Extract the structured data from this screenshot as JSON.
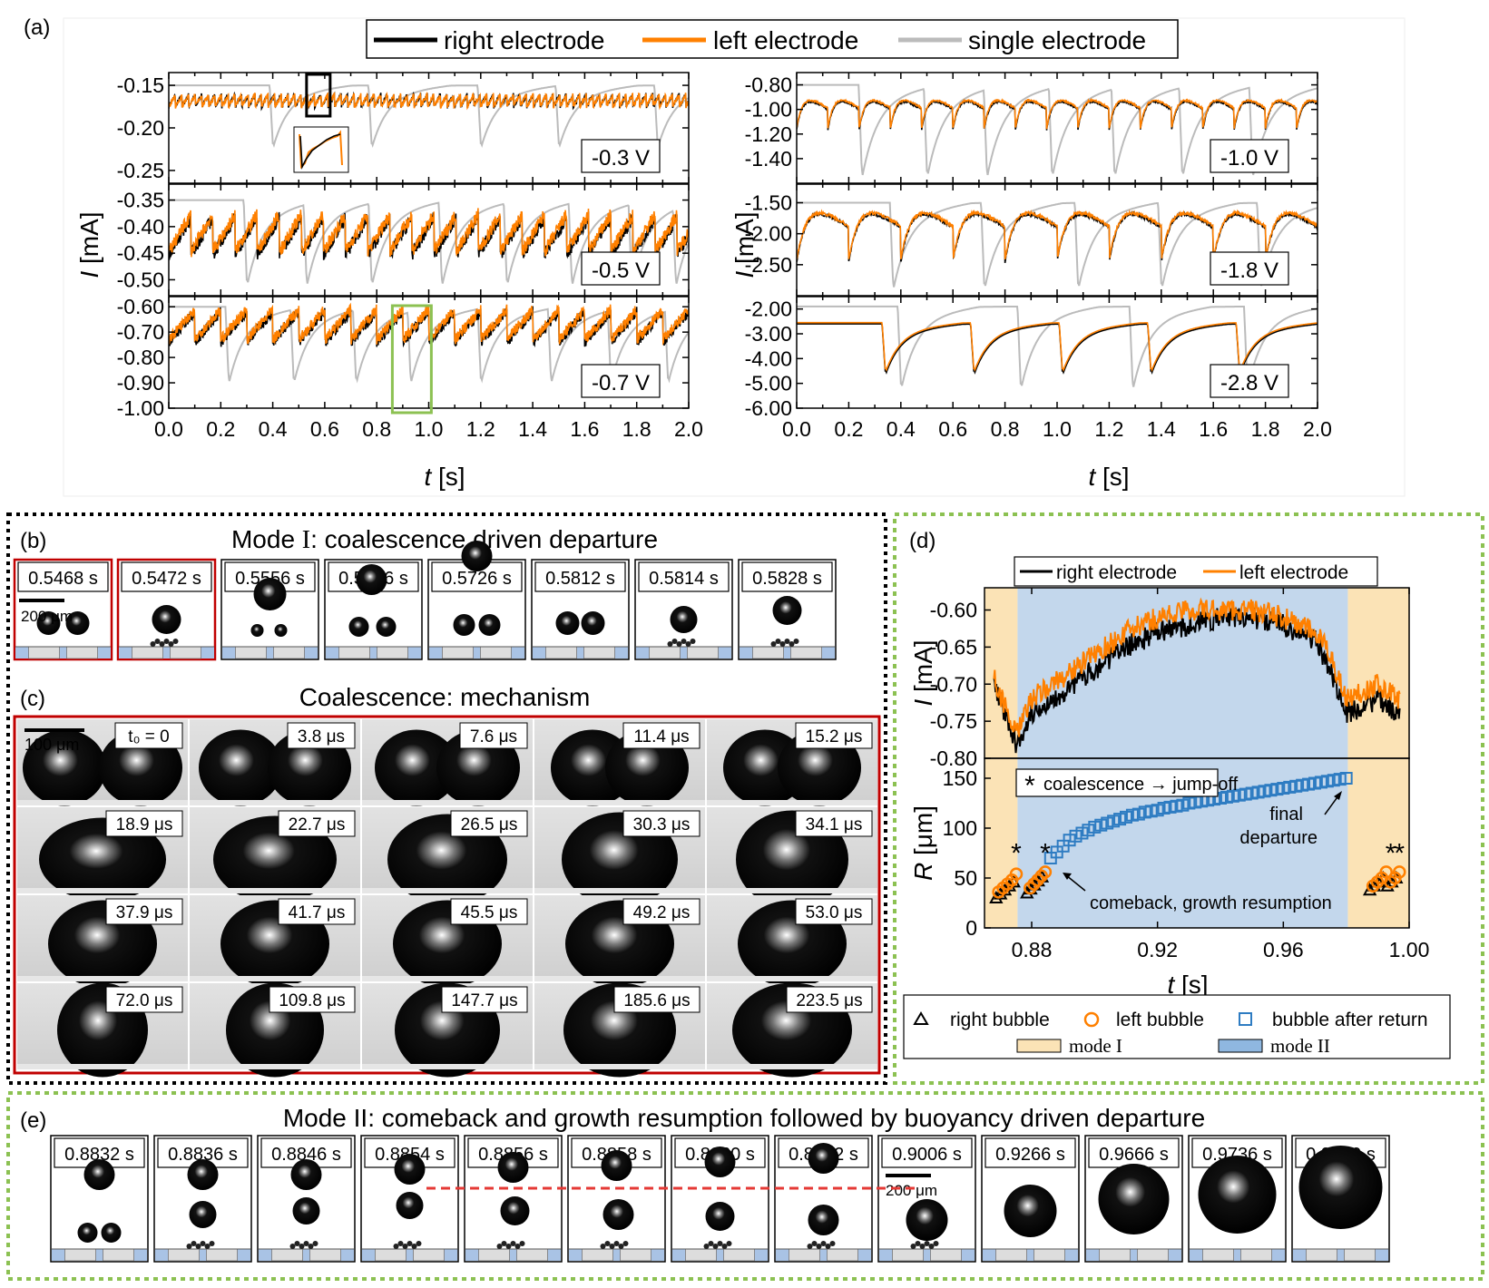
{
  "panel_labels": {
    "a": "(a)",
    "b": "(b)",
    "c": "(c)",
    "d": "(d)",
    "e": "(e)"
  },
  "colors": {
    "right": "#000000",
    "left": "#FF8000",
    "single": "#BBBBBB",
    "mode1": "#FBE3B6",
    "mode2": "#C3D7EC",
    "square": "#2E7CC2",
    "green": "#8CC152",
    "red": "#C00000"
  },
  "legend_a": {
    "right": "right electrode",
    "left": "left electrode",
    "single": "single electrode"
  },
  "chart_a": {
    "ylabel_italic": "I",
    "ylabel_unit": " [mA]",
    "xlabel_italic": "t",
    "xlabel_unit": " [s]",
    "xticks": [
      "0.0",
      "0.2",
      "0.4",
      "0.6",
      "0.8",
      "1.0",
      "1.2",
      "1.4",
      "1.6",
      "1.8",
      "2.0"
    ]
  },
  "chart_data": [
    {
      "type": "line",
      "panel": "a",
      "voltage": "-0.3 V",
      "ylim": [
        -0.265,
        -0.135
      ],
      "yticks": [
        "-0.15",
        "-0.20",
        "-0.25"
      ],
      "ytick_values": [
        -0.15,
        -0.2,
        -0.25
      ],
      "series": [
        {
          "name": "right electrode",
          "period": 0.0255,
          "mean": -0.168,
          "amp": 0.007
        },
        {
          "name": "left electrode",
          "period": 0.0255,
          "mean": -0.168,
          "amp": 0.007
        },
        {
          "name": "single electrode",
          "dips": [
            0.4,
            0.78,
            1.2,
            1.5,
            1.88
          ],
          "base": -0.15,
          "min": -0.218
        }
      ]
    },
    {
      "type": "line",
      "panel": "a",
      "voltage": "-0.5 V",
      "ylim": [
        -0.53,
        -0.32
      ],
      "yticks": [
        "-0.35",
        "-0.40",
        "-0.45",
        "-0.50"
      ],
      "ytick_values": [
        -0.35,
        -0.4,
        -0.45,
        -0.5
      ],
      "series": [
        {
          "name": "right electrode",
          "period": 0.085,
          "mean": -0.418,
          "amp": 0.035
        },
        {
          "name": "left electrode",
          "period": 0.085,
          "mean": -0.412,
          "amp": 0.035
        },
        {
          "name": "single electrode",
          "dips": [
            0.3,
            0.53,
            0.78,
            1.05,
            1.3,
            1.55,
            1.78,
            1.95
          ],
          "base": -0.35,
          "min": -0.5
        }
      ]
    },
    {
      "type": "line",
      "panel": "a",
      "voltage": "-0.7 V",
      "ylim": [
        -1.0,
        -0.56
      ],
      "yticks": [
        "-0.60",
        "-0.70",
        "-0.80",
        "-0.90",
        "-1.00"
      ],
      "ytick_values": [
        -0.6,
        -0.7,
        -0.8,
        -0.9,
        -1.0
      ],
      "series": [
        {
          "name": "right electrode",
          "period": 0.1,
          "mean": -0.68,
          "amp": 0.06
        },
        {
          "name": "left electrode",
          "period": 0.1,
          "mean": -0.67,
          "amp": 0.06
        },
        {
          "name": "single electrode",
          "dips": [
            0.23,
            0.48,
            0.72,
            0.93,
            1.2,
            1.47,
            1.7,
            1.92
          ],
          "base": -0.6,
          "min": -0.88
        }
      ]
    },
    {
      "type": "line",
      "panel": "a",
      "voltage": "-1.0 V",
      "ylim": [
        -1.6,
        -0.7
      ],
      "yticks": [
        "-0.80",
        "-1.00",
        "-1.20",
        "-1.40"
      ],
      "ytick_values": [
        -0.8,
        -1.0,
        -1.2,
        -1.4
      ],
      "series": [
        {
          "name": "right electrode",
          "period": 0.12,
          "mean": -1.0,
          "amp": 0.25
        },
        {
          "name": "left electrode",
          "period": 0.12,
          "mean": -0.99,
          "amp": 0.25
        },
        {
          "name": "single electrode",
          "dips": [
            0.25,
            0.5,
            0.73,
            0.98,
            1.22,
            1.48,
            1.75
          ],
          "base": -0.8,
          "min": -1.5
        }
      ]
    },
    {
      "type": "line",
      "panel": "a",
      "voltage": "-1.8 V",
      "ylim": [
        -3.0,
        -1.2
      ],
      "yticks": [
        "-1.50",
        "-2.00",
        "-2.50"
      ],
      "ytick_values": [
        -1.5,
        -2.0,
        -2.5
      ],
      "series": [
        {
          "name": "right electrode",
          "period": 0.2,
          "mean": -1.9,
          "amp": 0.85
        },
        {
          "name": "left electrode",
          "period": 0.2,
          "mean": -1.88,
          "amp": 0.85
        },
        {
          "name": "single electrode",
          "dips": [
            0.37,
            0.72,
            1.08,
            1.4,
            1.78
          ],
          "base": -1.5,
          "min": -2.8
        }
      ]
    },
    {
      "type": "line",
      "panel": "a",
      "voltage": "-2.8 V",
      "ylim": [
        -6.0,
        -1.5
      ],
      "yticks": [
        "-2.00",
        "-3.00",
        "-4.00",
        "-5.00",
        "-6.00"
      ],
      "ytick_values": [
        -2,
        -3,
        -4,
        -5,
        -6
      ],
      "series": [
        {
          "name": "right electrode",
          "dips": [
            0.34,
            0.68,
            1.02,
            1.36,
            1.7
          ],
          "base": -2.6,
          "min": -4.5
        },
        {
          "name": "left electrode",
          "dips": [
            0.34,
            0.68,
            1.02,
            1.36,
            1.7
          ],
          "base": -2.55,
          "min": -4.4
        },
        {
          "name": "single electrode",
          "dips": [
            0.4,
            0.86,
            1.29,
            1.73
          ],
          "base": -1.9,
          "min": -5.0
        }
      ]
    },
    {
      "type": "line",
      "panel": "d",
      "title": "",
      "xlim": [
        0.865,
        1.0
      ],
      "ylim": [
        -0.8,
        -0.57
      ],
      "ylabel": "I [mA]",
      "yticks": [
        "-0.60",
        "-0.65",
        "-0.70",
        "-0.75",
        "-0.80"
      ],
      "ytick_values": [
        -0.6,
        -0.65,
        -0.7,
        -0.75,
        -0.8
      ],
      "series": [
        {
          "name": "right electrode",
          "x": [
            0.868,
            0.875,
            0.88,
            0.89,
            0.9,
            0.91,
            0.92,
            0.93,
            0.94,
            0.95,
            0.96,
            0.97,
            0.975,
            0.98,
            0.99,
            0.997
          ],
          "y": [
            -0.7,
            -0.78,
            -0.74,
            -0.71,
            -0.68,
            -0.65,
            -0.63,
            -0.62,
            -0.61,
            -0.61,
            -0.62,
            -0.64,
            -0.68,
            -0.74,
            -0.72,
            -0.74
          ]
        },
        {
          "name": "left electrode",
          "x": [
            0.868,
            0.875,
            0.88,
            0.89,
            0.9,
            0.91,
            0.92,
            0.93,
            0.94,
            0.95,
            0.96,
            0.97,
            0.975,
            0.98,
            0.99,
            0.997
          ],
          "y": [
            -0.69,
            -0.77,
            -0.72,
            -0.69,
            -0.66,
            -0.63,
            -0.61,
            -0.6,
            -0.6,
            -0.6,
            -0.61,
            -0.63,
            -0.66,
            -0.72,
            -0.7,
            -0.72
          ]
        }
      ]
    },
    {
      "type": "scatter",
      "panel": "d",
      "title": "",
      "xlim": [
        0.865,
        1.0
      ],
      "ylim": [
        0,
        170
      ],
      "ylabel": "R [μm]",
      "xlabel": "t [s]",
      "xticks": [
        "0.88",
        "0.92",
        "0.96",
        "1.00"
      ],
      "xtick_values": [
        0.88,
        0.92,
        0.96,
        1.0
      ],
      "yticks": [
        "0",
        "50",
        "100",
        "150"
      ],
      "ytick_values": [
        0,
        50,
        100,
        150
      ],
      "series": [
        {
          "name": "right bubble",
          "x": [
            0.8687,
            0.8701,
            0.8715,
            0.8729,
            0.8743,
            0.8785,
            0.8797,
            0.8809,
            0.8821,
            0.8833,
            0.9875,
            0.9889,
            0.9903,
            0.9917,
            0.9931,
            0.9945,
            0.9959
          ],
          "y": [
            30,
            34,
            38,
            42,
            46,
            35,
            39,
            43,
            47,
            51,
            38,
            42,
            46,
            50,
            42,
            46,
            50
          ]
        },
        {
          "name": "left bubble",
          "x": [
            0.8695,
            0.8709,
            0.8723,
            0.8737,
            0.8751,
            0.8795,
            0.8807,
            0.8819,
            0.8831,
            0.8843,
            0.9885,
            0.9899,
            0.9913,
            0.9927,
            0.9941,
            0.9955,
            0.9969
          ],
          "y": [
            36,
            40,
            44,
            48,
            54,
            40,
            44,
            48,
            52,
            56,
            42,
            46,
            50,
            56,
            46,
            50,
            56
          ]
        },
        {
          "name": "bubble after return",
          "x": [
            0.886,
            0.888,
            0.89,
            0.892,
            0.894,
            0.896,
            0.898,
            0.9,
            0.902,
            0.904,
            0.906,
            0.908,
            0.91,
            0.912,
            0.914,
            0.916,
            0.918,
            0.92,
            0.922,
            0.924,
            0.926,
            0.928,
            0.93,
            0.932,
            0.934,
            0.936,
            0.938,
            0.94,
            0.942,
            0.944,
            0.946,
            0.948,
            0.95,
            0.952,
            0.954,
            0.956,
            0.958,
            0.96,
            0.962,
            0.964,
            0.966,
            0.968,
            0.97,
            0.972,
            0.974,
            0.976,
            0.978,
            0.98
          ],
          "y": [
            70,
            76,
            82,
            88,
            92,
            95,
            98,
            101,
            103,
            105,
            107,
            109,
            111,
            113,
            114,
            116,
            117,
            118,
            120,
            121,
            122,
            123,
            125,
            126,
            127,
            128,
            129,
            130,
            131,
            132,
            133,
            134,
            135,
            136,
            137,
            138,
            139,
            140,
            141,
            142,
            143,
            144,
            145,
            146,
            147,
            148,
            149,
            150
          ]
        }
      ],
      "mode1_ranges": [
        [
          0.865,
          0.8755
        ],
        [
          0.9805,
          1.0
        ]
      ],
      "mode2_range": [
        0.8755,
        0.9805
      ]
    }
  ],
  "chart_d": {
    "legend_right": "right electrode",
    "legend_left": "left electrode",
    "annotation_box": "coalescence → jump-off",
    "annot_final_1": "final",
    "annot_final_2": "departure",
    "annot_comeback": "comeback, growth resumption",
    "ylabel_i": "I",
    "ylabel_i_unit": " [mA]",
    "ylabel_r": "R",
    "ylabel_r_unit": " [μm]",
    "xlabel": "t",
    "xlabel_unit": " [s]",
    "star": "*"
  },
  "legend_d": {
    "right_bubble": "right bubble",
    "left_bubble": "left bubble",
    "after_return": "bubble after return",
    "mode1": "mode I",
    "mode2": "mode II"
  },
  "panel_b": {
    "title_pre": "Mode ",
    "title_roman": "I",
    "title_post": ": coalescence driven departure",
    "scale": "200 μm",
    "frames": [
      "0.5468 s",
      "0.5472 s",
      "0.5556 s",
      "0.5656 s",
      "0.5726 s",
      "0.5812 s",
      "0.5814 s",
      "0.5828 s"
    ]
  },
  "panel_c": {
    "title": "Coalescence: mechanism",
    "scale": "100 μm",
    "t0": "t₀ = 0",
    "frames": [
      "3.8 μs",
      "7.6 μs",
      "11.4 μs",
      "15.2 μs",
      "18.9 μs",
      "22.7 μs",
      "26.5 μs",
      "30.3 μs",
      "34.1 μs",
      "37.9 μs",
      "41.7 μs",
      "45.5 μs",
      "49.2 μs",
      "53.0 μs",
      "72.0 μs",
      "109.8 μs",
      "147.7 μs",
      "185.6 μs",
      "223.5 μs"
    ]
  },
  "panel_e": {
    "title": "Mode II: comeback and growth resumption followed by buoyancy driven departure",
    "scale": "200 μm",
    "frames": [
      "0.8832 s",
      "0.8836 s",
      "0.8846 s",
      "0.8854 s",
      "0.8856 s",
      "0.8858 s",
      "0.8860 s",
      "0.8862 s",
      "0.9006 s",
      "0.9266 s",
      "0.9666 s",
      "0.9736 s",
      "0.9800 s"
    ]
  }
}
